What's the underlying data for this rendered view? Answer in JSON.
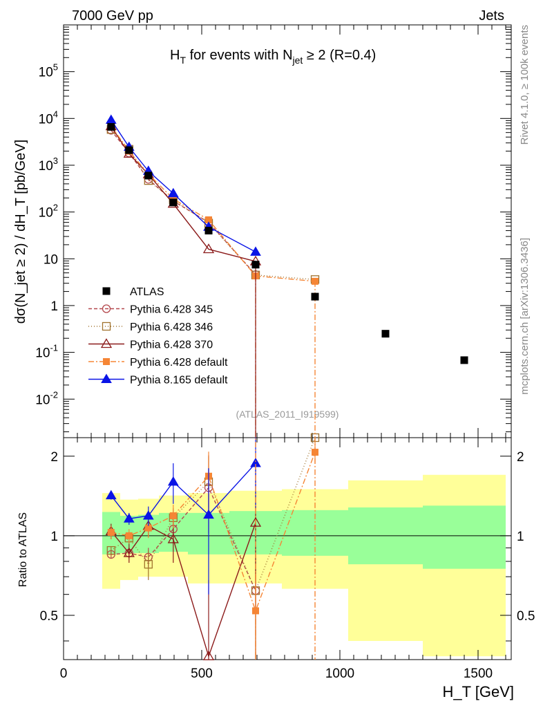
{
  "header": {
    "left_label": "7000 GeV pp",
    "right_label": "Jets",
    "side_label_top": "Rivet 4.1.0, ≥ 100k events",
    "side_label_bottom": "mcplots.cern.ch [arXiv:1306.3436]",
    "analysis_id": "(ATLAS_2011_I919599)"
  },
  "chart_data": {
    "type": "scatter",
    "title_main": "H",
    "title_sub_t": "T",
    "title_middle": " for events with N",
    "title_sub_jet": "jet",
    "title_end": " ≥ 2 (R=0.4)",
    "ylabel": "dσ(N_jet ≥ 2) / dH_T [pb/GeV]",
    "ratio_ylabel": "Ratio to ATLAS",
    "xlabel": "H_T [GeV]",
    "xlim": [
      0,
      1620
    ],
    "ylim": [
      0.0015,
      1000000
    ],
    "ratio_ylim": [
      0.34,
      2.35
    ],
    "x_ticks": [
      "0",
      "500",
      "1000",
      "1500"
    ],
    "y_ticks": [
      "10^-2",
      "10^-1",
      "1",
      "10",
      "10^2",
      "10^3",
      "10^4",
      "10^5"
    ],
    "ratio_ticks": [
      "0.5",
      "1",
      "2"
    ],
    "bins": [
      {
        "lo": 140,
        "hi": 205
      },
      {
        "lo": 205,
        "hi": 270
      },
      {
        "lo": 270,
        "hi": 345
      },
      {
        "lo": 345,
        "hi": 450
      },
      {
        "lo": 450,
        "hi": 600
      },
      {
        "lo": 600,
        "hi": 790
      },
      {
        "lo": 790,
        "hi": 1030
      },
      {
        "lo": 1030,
        "hi": 1300
      },
      {
        "lo": 1300,
        "hi": 1600
      }
    ],
    "band_inner": [
      [
        0.85,
        1.23
      ],
      [
        0.86,
        1.19
      ],
      [
        0.86,
        1.2
      ],
      [
        0.87,
        1.22
      ],
      [
        0.85,
        1.22
      ],
      [
        0.85,
        1.24
      ],
      [
        0.84,
        1.25
      ],
      [
        0.78,
        1.28
      ],
      [
        0.75,
        1.3
      ]
    ],
    "band_outer": [
      [
        0.63,
        1.45
      ],
      [
        0.68,
        1.37
      ],
      [
        0.7,
        1.38
      ],
      [
        0.7,
        1.42
      ],
      [
        0.66,
        1.45
      ],
      [
        0.66,
        1.48
      ],
      [
        0.63,
        1.5
      ],
      [
        0.4,
        1.62
      ],
      [
        0.35,
        1.7
      ]
    ],
    "data": {
      "name": "ATLAS",
      "x": [
        172,
        237,
        307,
        397,
        525,
        695,
        910,
        1165,
        1450
      ],
      "y": [
        6600,
        2100,
        600,
        160,
        40,
        7.5,
        1.55,
        0.25,
        0.068
      ]
    },
    "series": [
      {
        "name": "Pythia 6.428 345",
        "color": "#b4474c",
        "dash": "5,3",
        "marker": "circle-open",
        "x": [
          172,
          237,
          307,
          397,
          525,
          695
        ],
        "y": [
          5600,
          1820,
          500,
          172,
          60,
          4.6
        ],
        "ratio": [
          0.85,
          0.86,
          0.83,
          1.06,
          1.52,
          0.62
        ],
        "ratio_err": [
          0.03,
          0.04,
          0.07,
          0.1,
          0.5,
          0.1
        ]
      },
      {
        "name": "Pythia 6.428 346",
        "color": "#a0722d",
        "dash": "1,3",
        "marker": "square-open",
        "x": [
          172,
          237,
          307,
          397,
          525,
          695,
          910
        ],
        "y": [
          5800,
          2200,
          470,
          180,
          58,
          4.5,
          3.6
        ],
        "ratio": [
          0.88,
          0.98,
          0.78,
          1.17,
          1.6,
          0.62,
          2.35
        ],
        "ratio_err": [
          0.03,
          0.05,
          0.1,
          0.1,
          0.4,
          0.3,
          0.1
        ]
      },
      {
        "name": "Pythia 6.428 370",
        "color": "#8b1a1a",
        "dash": "",
        "marker": "triangle-open",
        "x": [
          172,
          237,
          307,
          397,
          525,
          695
        ],
        "y": [
          6800,
          1760,
          640,
          150,
          16,
          8.8
        ],
        "ratio": [
          1.04,
          0.86,
          1.09,
          0.97,
          0.35,
          1.12
        ],
        "ratio_err": [
          0.07,
          0.07,
          0.1,
          0.18,
          0.33,
          0.8
        ]
      },
      {
        "name": "Pythia 6.428 default",
        "color": "#f58535",
        "dash": "8,3,2,3",
        "marker": "square-filled",
        "x": [
          172,
          237,
          307,
          397,
          525,
          695,
          910
        ],
        "y": [
          6900,
          2000,
          650,
          190,
          68,
          4.3,
          3.3
        ],
        "ratio": [
          1.03,
          1.0,
          1.07,
          1.19,
          1.68,
          0.52,
          2.07
        ],
        "ratio_err": [
          0.06,
          0.06,
          0.09,
          0.12,
          0.4,
          0.2,
          0.2
        ]
      },
      {
        "name": "Pythia 8.165 default",
        "color": "#0a14e6",
        "dash": "",
        "marker": "triangle-filled",
        "x": [
          172,
          237,
          307,
          397,
          525,
          695
        ],
        "y": [
          9300,
          2450,
          750,
          250,
          48,
          14
        ],
        "ratio": [
          1.42,
          1.16,
          1.19,
          1.6,
          1.2,
          1.88
        ],
        "ratio_err": [
          0.05,
          0.06,
          0.1,
          0.28,
          0.6,
          0.6
        ]
      }
    ]
  }
}
